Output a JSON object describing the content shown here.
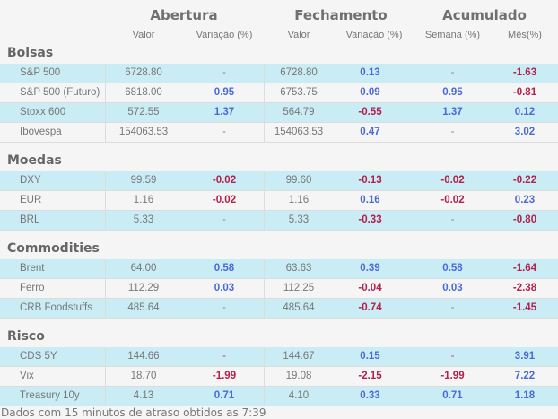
{
  "header": {
    "groups": [
      "Abertura",
      "Fechamento",
      "Acumulado"
    ],
    "columns": [
      "Valor",
      "Variação (%)",
      "Valor",
      "Variação (%)",
      "Semana (%)",
      "Mês(%)"
    ]
  },
  "colors": {
    "positive": "#4a6ad6",
    "negative": "#b3204b",
    "row_highlight": "#c9ecf5",
    "row_plain": "#f4f5f4"
  },
  "sections": [
    {
      "title": "Bolsas",
      "rows": [
        {
          "name": "S&P 500",
          "cells": [
            [
              "6728.80",
              "num"
            ],
            [
              "-",
              "none"
            ],
            [
              "6728.80",
              "num"
            ],
            [
              "0.13",
              "up"
            ],
            [
              "-",
              "none"
            ],
            [
              "-1.63",
              "down"
            ]
          ]
        },
        {
          "name": "S&P 500 (Futuro)",
          "cells": [
            [
              "6818.00",
              "num"
            ],
            [
              "0.95",
              "up"
            ],
            [
              "6753.75",
              "num"
            ],
            [
              "0.09",
              "up"
            ],
            [
              "0.95",
              "up"
            ],
            [
              "-0.81",
              "down"
            ]
          ]
        },
        {
          "name": "Stoxx 600",
          "cells": [
            [
              "572.55",
              "num"
            ],
            [
              "1.37",
              "up"
            ],
            [
              "564.79",
              "num"
            ],
            [
              "-0.55",
              "down"
            ],
            [
              "1.37",
              "up"
            ],
            [
              "0.12",
              "up"
            ]
          ]
        },
        {
          "name": "Ibovespa",
          "cells": [
            [
              "154063.53",
              "num"
            ],
            [
              "-",
              "none"
            ],
            [
              "154063.53",
              "num"
            ],
            [
              "0.47",
              "up"
            ],
            [
              "-",
              "none"
            ],
            [
              "3.02",
              "up"
            ]
          ]
        }
      ]
    },
    {
      "title": "Moedas",
      "rows": [
        {
          "name": "DXY",
          "cells": [
            [
              "99.59",
              "num"
            ],
            [
              "-0.02",
              "down"
            ],
            [
              "99.60",
              "num"
            ],
            [
              "-0.13",
              "down"
            ],
            [
              "-0.02",
              "down"
            ],
            [
              "-0.22",
              "down"
            ]
          ]
        },
        {
          "name": "EUR",
          "cells": [
            [
              "1.16",
              "num"
            ],
            [
              "-0.02",
              "down"
            ],
            [
              "1.16",
              "num"
            ],
            [
              "0.16",
              "up"
            ],
            [
              "-0.02",
              "down"
            ],
            [
              "0.23",
              "up"
            ]
          ]
        },
        {
          "name": "BRL",
          "cells": [
            [
              "5.33",
              "num"
            ],
            [
              "-",
              "none"
            ],
            [
              "5.33",
              "num"
            ],
            [
              "-0.33",
              "down"
            ],
            [
              "-",
              "none"
            ],
            [
              "-0.80",
              "down"
            ]
          ]
        }
      ]
    },
    {
      "title": "Commodities",
      "rows": [
        {
          "name": "Brent",
          "cells": [
            [
              "64.00",
              "num"
            ],
            [
              "0.58",
              "up"
            ],
            [
              "63.63",
              "num"
            ],
            [
              "0.39",
              "up"
            ],
            [
              "0.58",
              "up"
            ],
            [
              "-1.64",
              "down"
            ]
          ]
        },
        {
          "name": "Ferro",
          "cells": [
            [
              "112.29",
              "num"
            ],
            [
              "0.03",
              "up"
            ],
            [
              "112.25",
              "num"
            ],
            [
              "-0.04",
              "down"
            ],
            [
              "0.03",
              "up"
            ],
            [
              "-2.38",
              "down"
            ]
          ]
        },
        {
          "name": "CRB Foodstuffs",
          "cells": [
            [
              "485.64",
              "num"
            ],
            [
              "-",
              "none"
            ],
            [
              "485.64",
              "num"
            ],
            [
              "-0.74",
              "down"
            ],
            [
              "-",
              "none"
            ],
            [
              "-1.45",
              "down"
            ]
          ]
        }
      ]
    },
    {
      "title": "Risco",
      "rows": [
        {
          "name": "CDS 5Y",
          "cells": [
            [
              "144.66",
              "num"
            ],
            [
              "-",
              "dn"
            ],
            [
              "144.67",
              "num"
            ],
            [
              "0.15",
              "up"
            ],
            [
              "-",
              "dn"
            ],
            [
              "3.91",
              "up"
            ]
          ]
        },
        {
          "name": "Vix",
          "cells": [
            [
              "18.70",
              "num"
            ],
            [
              "-1.99",
              "down"
            ],
            [
              "19.08",
              "num"
            ],
            [
              "-2.15",
              "down"
            ],
            [
              "-1.99",
              "down"
            ],
            [
              "7.22",
              "up"
            ]
          ]
        },
        {
          "name": "Treasury 10y",
          "cells": [
            [
              "4.13",
              "num"
            ],
            [
              "0.71",
              "up"
            ],
            [
              "4.10",
              "num"
            ],
            [
              "0.33",
              "up"
            ],
            [
              "0.71",
              "up"
            ],
            [
              "1.18",
              "up"
            ]
          ]
        }
      ]
    }
  ],
  "footer": "Dados com 15 minutos de atraso obtidos as 7:39"
}
